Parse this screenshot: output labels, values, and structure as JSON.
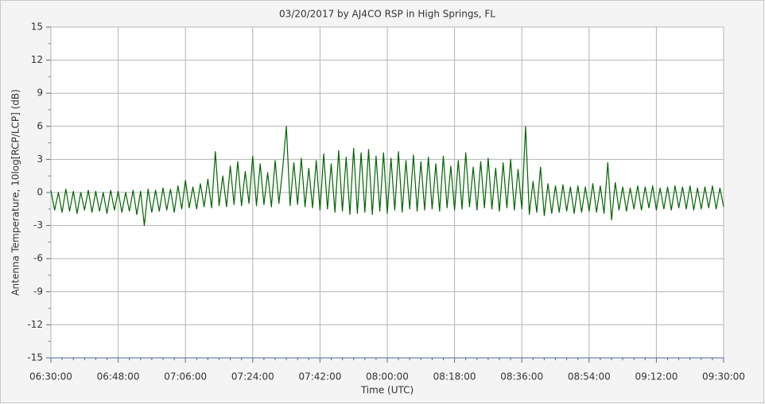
{
  "chart_data": {
    "type": "line",
    "title": "03/20/2017  by  AJ4CO RSP  in  High Springs, FL",
    "xlabel": "Time (UTC)",
    "ylabel": "Antenna Temperature, 10log[RCP/LCP] (dB)",
    "x": [
      "06:30:00",
      "06:31:00",
      "06:32:00",
      "06:33:00",
      "06:34:00",
      "06:35:00",
      "06:36:00",
      "06:37:00",
      "06:38:00",
      "06:39:00",
      "06:40:00",
      "06:41:00",
      "06:42:00",
      "06:43:00",
      "06:44:00",
      "06:45:00",
      "06:46:00",
      "06:47:00",
      "06:48:00",
      "06:49:00",
      "06:50:00",
      "06:51:00",
      "06:52:00",
      "06:53:00",
      "06:54:00",
      "06:55:00",
      "06:56:00",
      "06:57:00",
      "06:58:00",
      "06:59:00",
      "07:00:00",
      "07:01:00",
      "07:02:00",
      "07:03:00",
      "07:04:00",
      "07:05:00",
      "07:06:00",
      "07:07:00",
      "07:08:00",
      "07:09:00",
      "07:10:00",
      "07:11:00",
      "07:12:00",
      "07:13:00",
      "07:14:00",
      "07:15:00",
      "07:16:00",
      "07:17:00",
      "07:18:00",
      "07:19:00",
      "07:20:00",
      "07:21:00",
      "07:22:00",
      "07:23:00",
      "07:24:00",
      "07:25:00",
      "07:26:00",
      "07:27:00",
      "07:28:00",
      "07:29:00",
      "07:30:00",
      "07:31:00",
      "07:32:00",
      "07:33:00",
      "07:34:00",
      "07:35:00",
      "07:36:00",
      "07:37:00",
      "07:38:00",
      "07:39:00",
      "07:40:00",
      "07:41:00",
      "07:42:00",
      "07:43:00",
      "07:44:00",
      "07:45:00",
      "07:46:00",
      "07:47:00",
      "07:48:00",
      "07:49:00",
      "07:50:00",
      "07:51:00",
      "07:52:00",
      "07:53:00",
      "07:54:00",
      "07:55:00",
      "07:56:00",
      "07:57:00",
      "07:58:00",
      "07:59:00",
      "08:00:00",
      "08:01:00",
      "08:02:00",
      "08:03:00",
      "08:04:00",
      "08:05:00",
      "08:06:00",
      "08:07:00",
      "08:08:00",
      "08:09:00",
      "08:10:00",
      "08:11:00",
      "08:12:00",
      "08:13:00",
      "08:14:00",
      "08:15:00",
      "08:16:00",
      "08:17:00",
      "08:18:00",
      "08:19:00",
      "08:20:00",
      "08:21:00",
      "08:22:00",
      "08:23:00",
      "08:24:00",
      "08:25:00",
      "08:26:00",
      "08:27:00",
      "08:28:00",
      "08:29:00",
      "08:30:00",
      "08:31:00",
      "08:32:00",
      "08:33:00",
      "08:34:00",
      "08:35:00",
      "08:36:00",
      "08:37:00",
      "08:38:00",
      "08:39:00",
      "08:40:00",
      "08:41:00",
      "08:42:00",
      "08:43:00",
      "08:44:00",
      "08:45:00",
      "08:46:00",
      "08:47:00",
      "08:48:00",
      "08:49:00",
      "08:50:00",
      "08:51:00",
      "08:52:00",
      "08:53:00",
      "08:54:00",
      "08:55:00",
      "08:56:00",
      "08:57:00",
      "08:58:00",
      "08:59:00",
      "09:00:00",
      "09:01:00",
      "09:02:00",
      "09:03:00",
      "09:04:00",
      "09:05:00",
      "09:06:00",
      "09:07:00",
      "09:08:00",
      "09:09:00",
      "09:10:00",
      "09:11:00",
      "09:12:00",
      "09:13:00",
      "09:14:00",
      "09:15:00",
      "09:16:00",
      "09:17:00",
      "09:18:00",
      "09:19:00",
      "09:20:00",
      "09:21:00",
      "09:22:00",
      "09:23:00",
      "09:24:00",
      "09:25:00",
      "09:26:00",
      "09:27:00",
      "09:28:00",
      "09:29:00",
      "09:30:00"
    ],
    "series": [
      {
        "color": "#006400",
        "values": [
          0.2,
          -1.6,
          0,
          -1.8,
          0.3,
          -1.7,
          0.1,
          -1.9,
          0,
          -1.6,
          0.2,
          -1.8,
          0.1,
          -1.7,
          0,
          -1.9,
          0.2,
          -1.6,
          0.1,
          -1.8,
          0,
          -1.7,
          0.2,
          -2.0,
          0.1,
          -3.0,
          0.3,
          -1.8,
          0.2,
          -1.7,
          0.4,
          -1.6,
          0.3,
          -1.8,
          0.6,
          -1.5,
          1.1,
          -1.4,
          0.5,
          -1.5,
          0.8,
          -1.3,
          1.2,
          -1.4,
          3.7,
          -1.2,
          1.5,
          -1.3,
          2.4,
          -1.1,
          2.8,
          -1.2,
          1.9,
          -1.0,
          3.3,
          -1.2,
          2.6,
          -1.1,
          1.8,
          -1.3,
          2.9,
          -1.0,
          2.1,
          6.0,
          -1.2,
          2.7,
          -1.1,
          3.1,
          -1.3,
          2.2,
          -1.4,
          2.9,
          -1.6,
          3.5,
          -1.5,
          2.6,
          -1.8,
          3.8,
          -1.7,
          3.2,
          -2.0,
          4.0,
          -1.9,
          3.6,
          -1.8,
          3.9,
          -2.0,
          3.3,
          -1.7,
          3.6,
          -1.9,
          3.1,
          -1.6,
          3.7,
          -1.8,
          2.9,
          -1.5,
          3.4,
          -1.7,
          2.8,
          -1.6,
          3.2,
          -1.5,
          2.6,
          -1.7,
          3.3,
          -1.4,
          2.4,
          -1.6,
          2.9,
          -1.5,
          3.6,
          -1.3,
          2.3,
          -1.6,
          2.8,
          -1.4,
          3.1,
          -1.5,
          2.2,
          -1.7,
          2.7,
          -1.4,
          3.0,
          -1.6,
          2.1,
          -1.5,
          6.0,
          -2.0,
          1.0,
          -1.8,
          2.3,
          -2.1,
          0.8,
          -1.9,
          0.6,
          -1.8,
          0.7,
          -1.7,
          0.5,
          -1.9,
          0.6,
          -1.8,
          0.5,
          -1.7,
          0.8,
          -1.8,
          0.6,
          -1.9,
          2.7,
          -2.5,
          0.9,
          -1.6,
          0.5,
          -1.7,
          0.4,
          -1.5,
          0.6,
          -1.6,
          0.5,
          -1.4,
          0.6,
          -1.6,
          0.4,
          -1.5,
          0.5,
          -1.6,
          0.6,
          -1.4,
          0.5,
          -1.5,
          0.6,
          -1.6,
          0.4,
          -1.5,
          0.5,
          -1.4,
          0.6,
          -1.5,
          0.4,
          -1.3
        ]
      }
    ],
    "xlim": [
      "06:30:00",
      "09:30:00"
    ],
    "xticks": [
      "06:30:00",
      "06:48:00",
      "07:06:00",
      "07:24:00",
      "07:42:00",
      "08:00:00",
      "08:18:00",
      "08:36:00",
      "08:54:00",
      "09:12:00",
      "09:30:00"
    ],
    "ylim": [
      -15,
      15
    ],
    "yticks": [
      -15,
      -12,
      -9,
      -6,
      -3,
      0,
      3,
      6,
      9,
      12,
      15
    ],
    "grid": true
  }
}
